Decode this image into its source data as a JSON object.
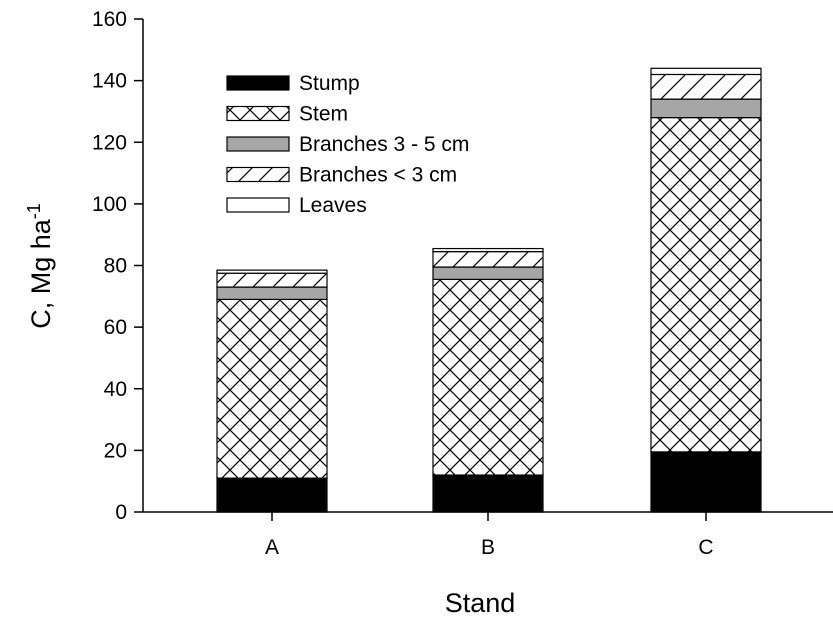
{
  "chart_data": {
    "type": "bar",
    "stacked": true,
    "xlabel": "Stand",
    "ylabel": "C, Mg ha",
    "ylabel_superscript": "-1",
    "ylim": [
      0,
      160
    ],
    "yticks": [
      "0",
      "20",
      "40",
      "60",
      "80",
      "100",
      "120",
      "140",
      "160"
    ],
    "categories": [
      "A",
      "B",
      "C"
    ],
    "series": [
      {
        "name": "Stump",
        "values": [
          11,
          12,
          19.5
        ],
        "pattern": "solid-black"
      },
      {
        "name": "Stem",
        "values": [
          58,
          63.5,
          108.5
        ],
        "pattern": "crosshatch"
      },
      {
        "name": "Branches 3 - 5 cm",
        "values": [
          4,
          4,
          6
        ],
        "pattern": "solid-gray"
      },
      {
        "name": "Branches < 3 cm",
        "values": [
          4.5,
          5,
          8
        ],
        "pattern": "diagonal"
      },
      {
        "name": "Leaves",
        "values": [
          1,
          1,
          2
        ],
        "pattern": "white"
      }
    ],
    "legend_position": "top-left",
    "grid": false,
    "colors": {
      "stump": "#000000",
      "branches_3_5": "#a6a6a6",
      "background": "#ffffff"
    }
  }
}
